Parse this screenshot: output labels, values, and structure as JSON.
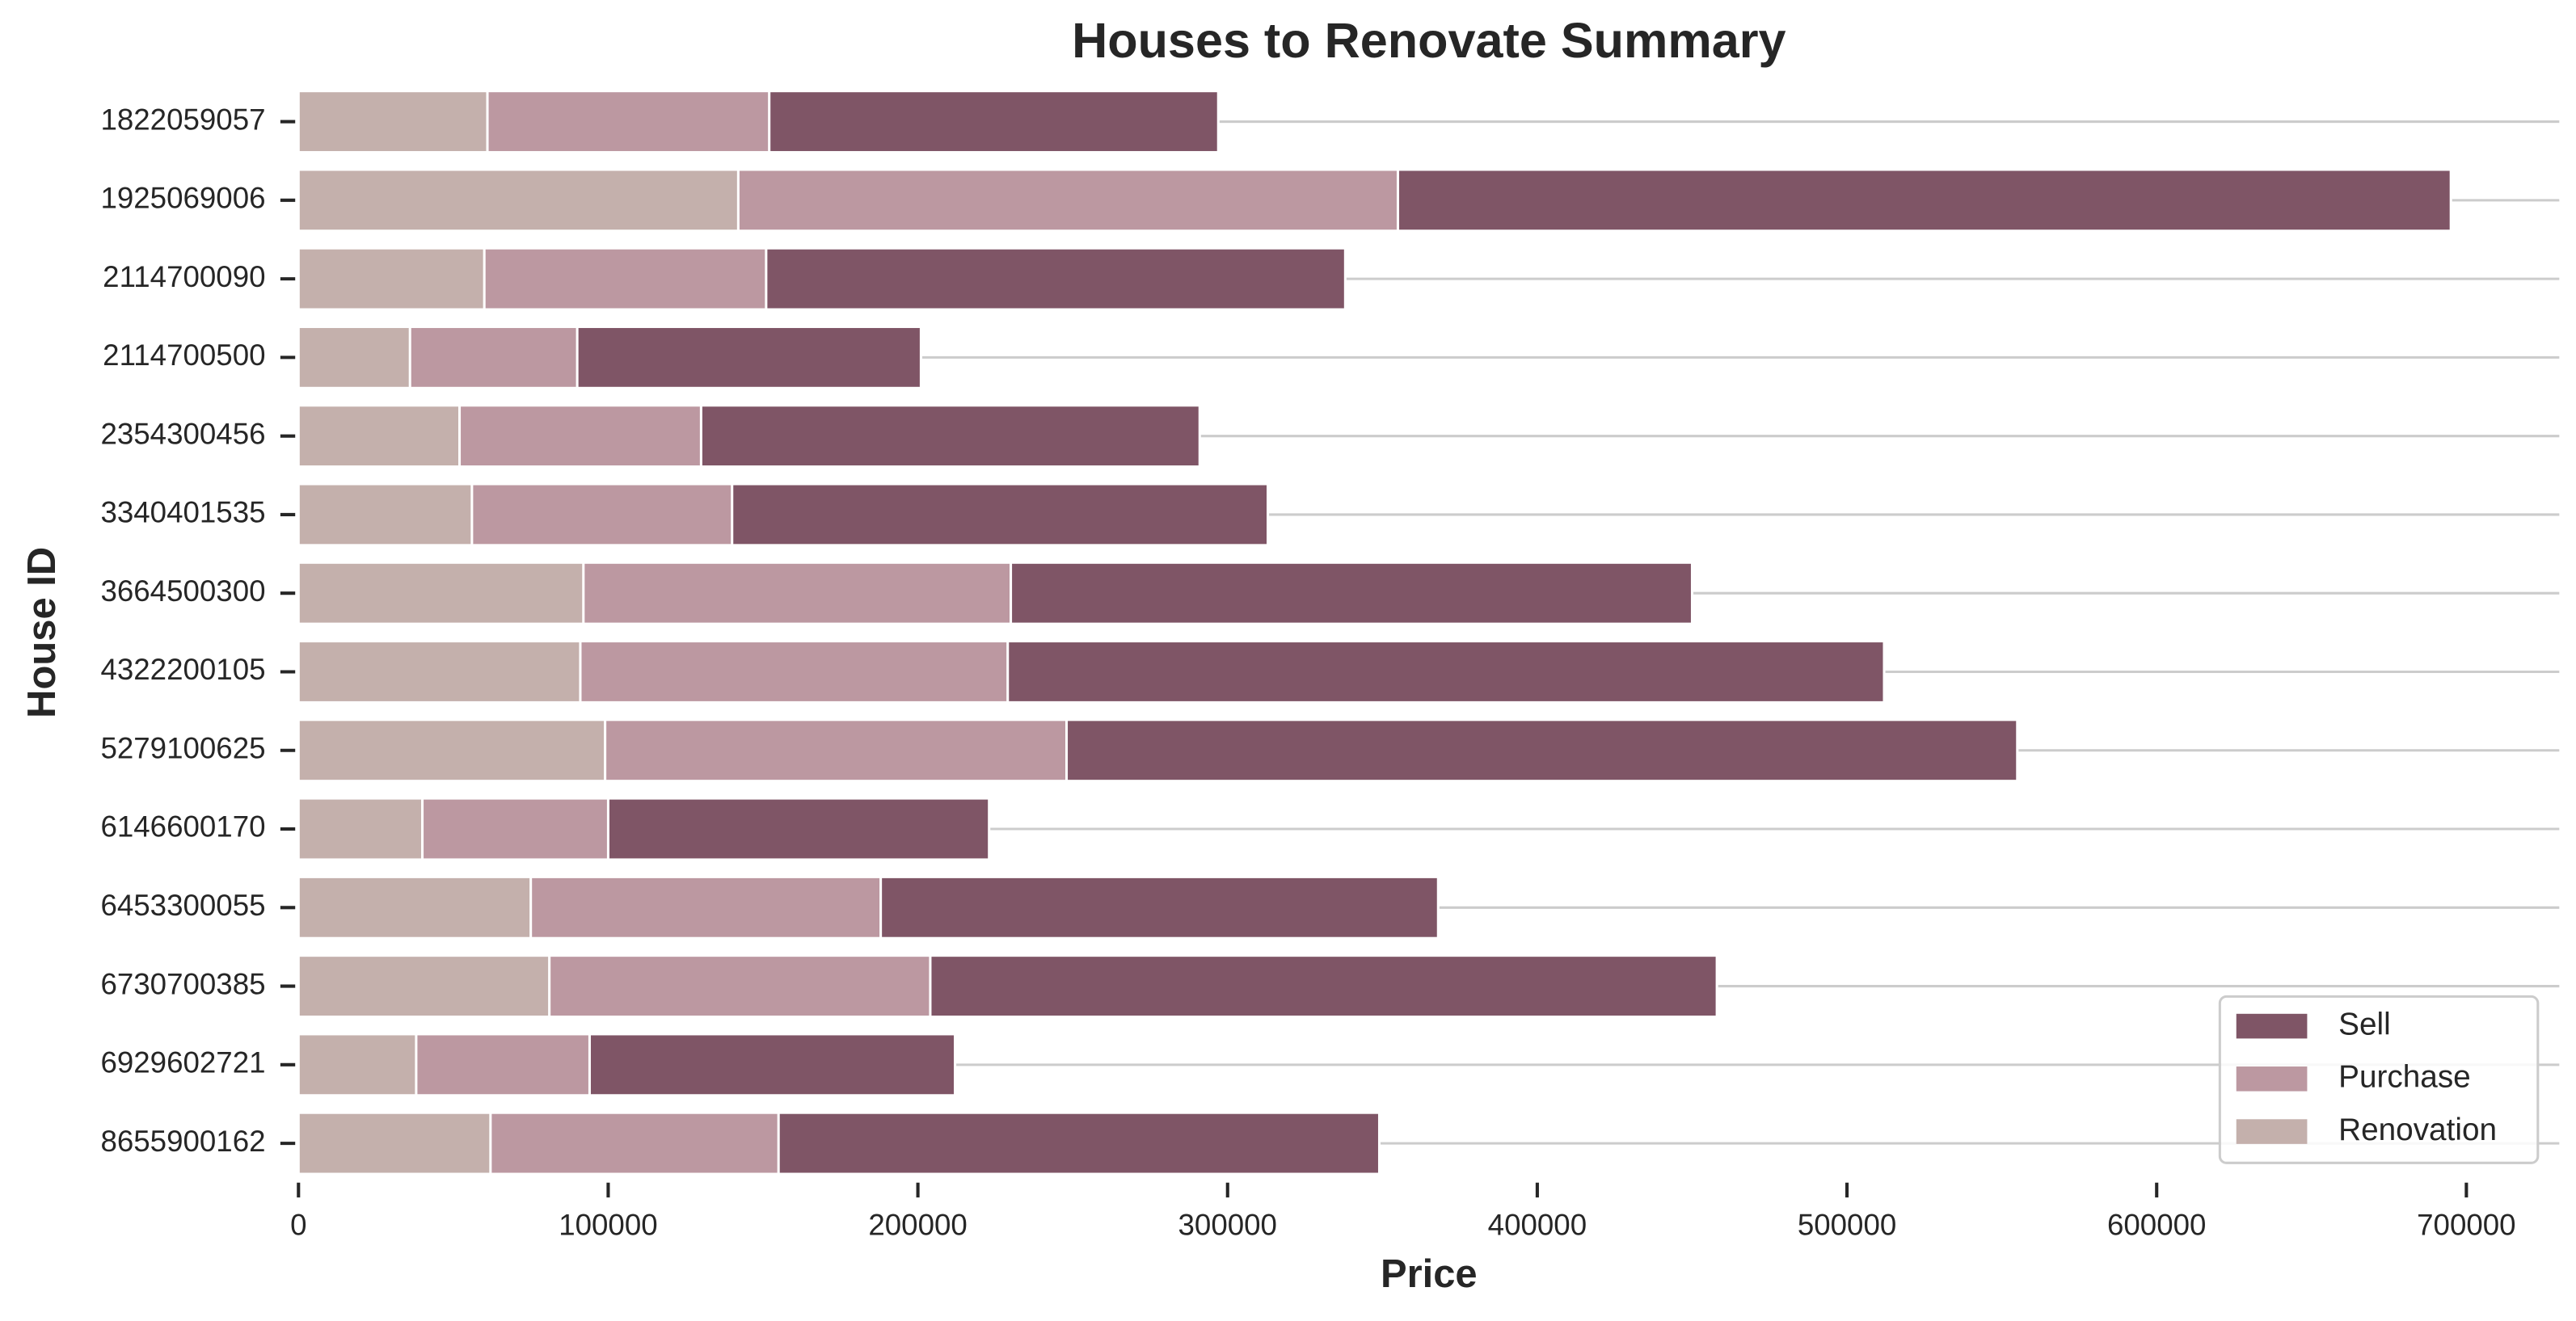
{
  "chart_data": {
    "type": "barh_overlay",
    "title": "Houses to Renovate Summary",
    "x_label": "Price",
    "y_label": "House ID",
    "categories": [
      "1822059057",
      "1925069006",
      "2114700090",
      "2114700500",
      "2354300456",
      "3340401535",
      "3664500300",
      "4322200105",
      "5279100625",
      "6146600170",
      "6453300055",
      "6730700385",
      "6929602721",
      "8655900162"
    ],
    "series": [
      {
        "name": "Sell",
        "color": "#7f5566",
        "values": [
          297000,
          695000,
          338000,
          201000,
          291000,
          313000,
          450000,
          512000,
          555000,
          223000,
          368000,
          458000,
          212000,
          349000
        ]
      },
      {
        "name": "Purchase",
        "color": "#bc98a1",
        "values": [
          152000,
          355000,
          151000,
          90000,
          130000,
          140000,
          230000,
          229000,
          248000,
          100000,
          188000,
          204000,
          94000,
          155000
        ]
      },
      {
        "name": "Renovation",
        "color": "#c4b0ac",
        "values": [
          61000,
          142000,
          60000,
          36000,
          52000,
          56000,
          92000,
          91000,
          99000,
          40000,
          75000,
          81000,
          38000,
          62000
        ]
      }
    ],
    "xlim": [
      0,
      730000
    ],
    "xticks": [
      0,
      100000,
      200000,
      300000,
      400000,
      500000,
      600000,
      700000
    ],
    "grid": true,
    "legend": "lower right"
  }
}
